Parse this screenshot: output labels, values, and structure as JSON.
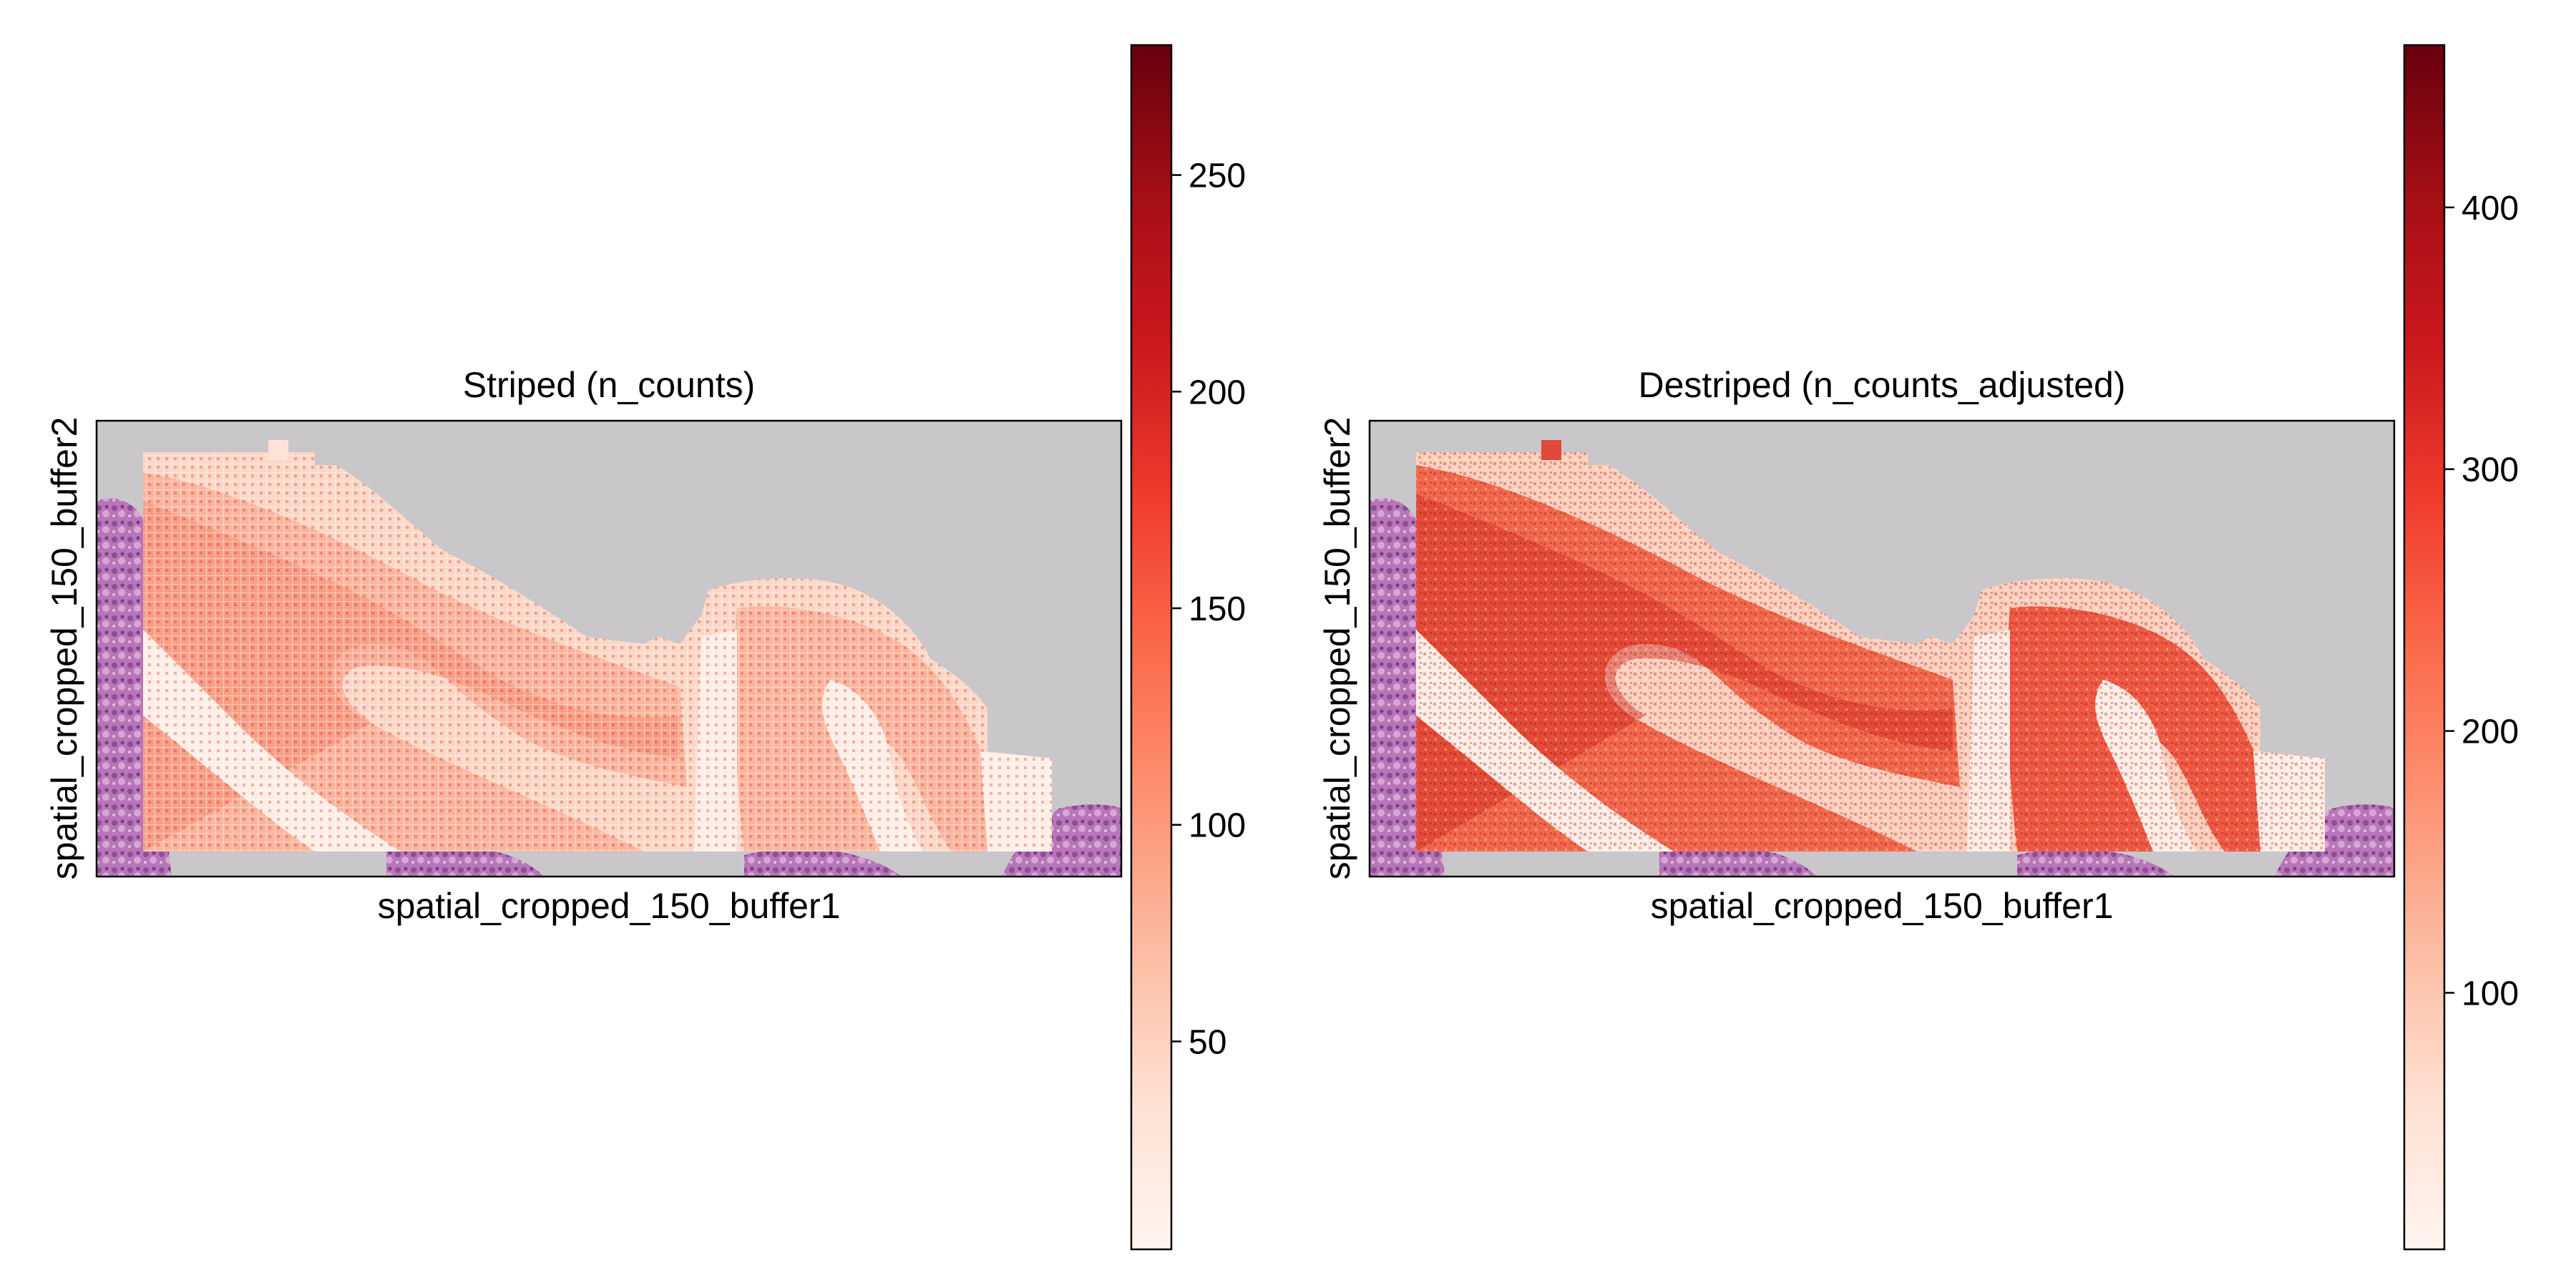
{
  "chart_data": [
    {
      "type": "heatmap",
      "title": "Striped (n_counts)",
      "xlabel": "spatial_cropped_150_buffer1",
      "ylabel": "spatial_cropped_150_buffer2",
      "colormap": "Reds",
      "colorbar": {
        "range": [
          2,
          280
        ],
        "ticks": [
          50,
          100,
          150,
          200,
          250
        ],
        "tick_labels": [
          "50",
          "100",
          "150",
          "200",
          "250"
        ]
      },
      "background": "H&E tissue image (grey with purple tissue at edges)",
      "pattern": "grid striping artifact",
      "grid": false
    },
    {
      "type": "heatmap",
      "title": "Destriped (n_counts_adjusted)",
      "xlabel": "spatial_cropped_150_buffer1",
      "ylabel": "spatial_cropped_150_buffer2",
      "colormap": "Reds",
      "colorbar": {
        "range": [
          2,
          462
        ],
        "ticks": [
          100,
          200,
          300,
          400
        ],
        "tick_labels": [
          "100",
          "200",
          "300",
          "400"
        ]
      },
      "background": "H&E tissue image (grey with purple tissue at edges)",
      "pattern": "smooth (destriped)",
      "grid": false
    }
  ],
  "colors": {
    "axes_bg": "#cac7cb",
    "tissue": "#b66fb6",
    "tissue_dark": "#8f3f91",
    "reds_low": "#fff5f0",
    "reds_mid": "#fb6a4a",
    "reds_high": "#67000d"
  }
}
